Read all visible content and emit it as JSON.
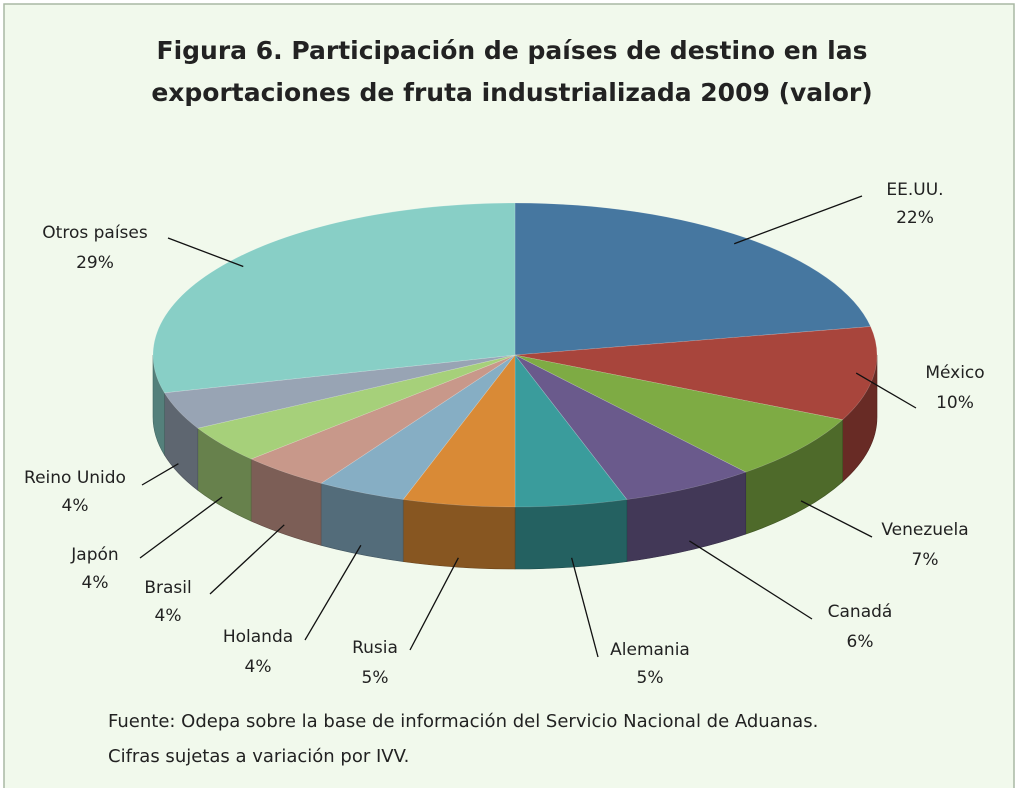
{
  "chart_data": {
    "type": "pie3d",
    "title": [
      "Figura 6. Participación de países de destino en las",
      "exportaciones de fruta industrializada 2009 (valor)"
    ],
    "categories": [
      "EE.UU.",
      "México",
      "Venezuela",
      "Canadá",
      "Alemania",
      "Rusia",
      "Holanda",
      "Brasil",
      "Japón",
      "Reino Unido",
      "Otros países"
    ],
    "values": [
      22,
      10,
      7,
      6,
      5,
      5,
      4,
      4,
      4,
      4,
      29
    ],
    "value_labels": [
      "22%",
      "10%",
      "7%",
      "6%",
      "5%",
      "5%",
      "4%",
      "4%",
      "4%",
      "4%",
      "29%"
    ],
    "colors": [
      "#4677a0",
      "#a8453c",
      "#7eab44",
      "#6a5a8c",
      "#3a9c9c",
      "#d98a36",
      "#86aec4",
      "#c8988a",
      "#a6d07a",
      "#98a4b4",
      "#88cfc6"
    ],
    "source": [
      "Fuente: Odepa sobre la base de información del Servicio Nacional de Aduanas.",
      "Cifras sujetas a variación por IVV."
    ]
  }
}
